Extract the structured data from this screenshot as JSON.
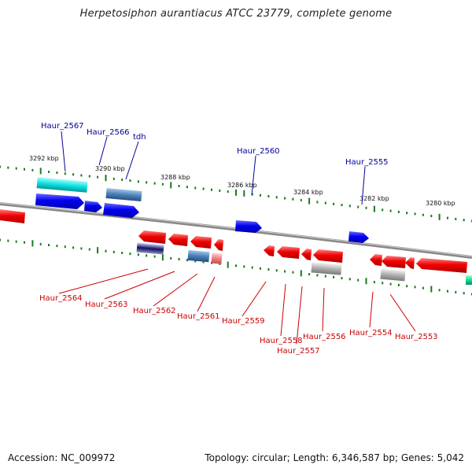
{
  "title": "Herpetosiphon aurantiacus ATCC 23779, complete genome",
  "footer": {
    "accession": "Accession: NC_009972",
    "summary": "Topology: circular; Length: 6,346,587 bp; Genes: 5,042"
  },
  "colors": {
    "forward_gene": "#0000ee",
    "reverse_gene": "#ee0000",
    "forward_label": "#000099",
    "reverse_label": "#cc0000",
    "tick": "#1a7a1a",
    "backbone": "#808080"
  },
  "scale_labels": [
    "3292 kbp",
    "3290 kbp",
    "3288 kbp",
    "3286 kbp",
    "3284 kbp",
    "3282 kbp",
    "3280 kbp"
  ],
  "forward_labels": [
    "Haur_2567",
    "Haur_2566",
    "tdh",
    "Haur_2560",
    "Haur_2555"
  ],
  "reverse_labels": [
    "Haur_2564",
    "Haur_2563",
    "Haur_2562",
    "Haur_2561",
    "Haur_2559",
    "Haur_2558",
    "Haur_2557",
    "Haur_2556",
    "Haur_2554",
    "Haur_2553"
  ]
}
